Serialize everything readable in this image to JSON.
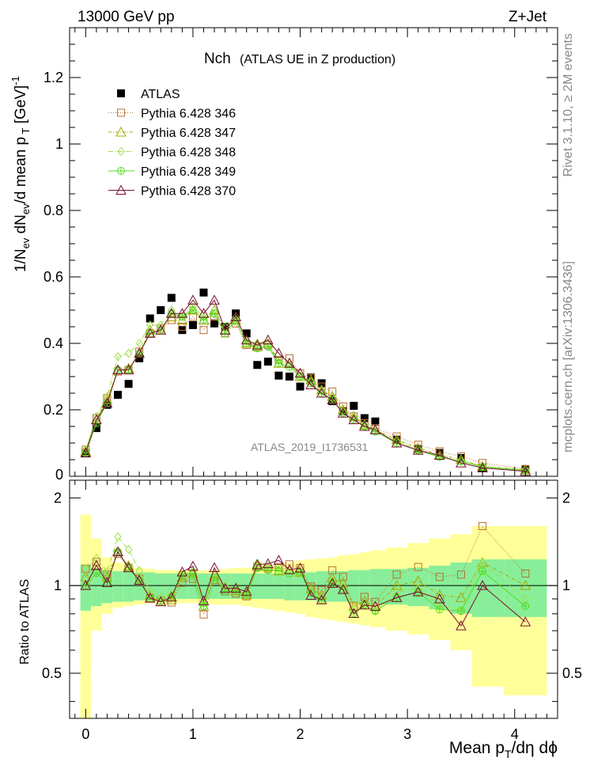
{
  "header": {
    "left": "13000 GeV pp",
    "right": "Z+Jet"
  },
  "side_texts": {
    "rivet": "Rivet 3.1.10, ≥ 2M events",
    "mcplots": "mcplots.cern.ch [arXiv:1306.3436]"
  },
  "chart_data": {
    "type": "scatter",
    "title": "Nch",
    "subtitle": "(ATLAS UE in Z production)",
    "analysis_id": "ATLAS_2019_I1736531",
    "xlabel": "Mean p_T/dη dφ",
    "ylabel": "1/N_ev dN_ev/d mean p_T [GeV]^-1",
    "ratio_ylabel": "Ratio to ATLAS",
    "xlim": [
      -0.15,
      4.4
    ],
    "ylim": [
      0,
      1.35
    ],
    "ratio_ylim": [
      0.35,
      2.3
    ],
    "x_ticks": [
      "0",
      "1",
      "2",
      "3",
      "4"
    ],
    "y_ticks": [
      "0.2",
      "0.4",
      "0.6",
      "0.8",
      "1",
      "1.2"
    ],
    "y_bottom_partial_label": "0",
    "ratio_ticks": [
      "0.5",
      "1",
      "2"
    ],
    "legend_position": "top-left",
    "x": [
      0.0,
      0.1,
      0.2,
      0.3,
      0.4,
      0.5,
      0.6,
      0.7,
      0.8,
      0.9,
      1.0,
      1.1,
      1.2,
      1.3,
      1.4,
      1.5,
      1.6,
      1.7,
      1.8,
      1.9,
      2.0,
      2.1,
      2.2,
      2.3,
      2.4,
      2.5,
      2.6,
      2.7,
      2.9,
      3.1,
      3.3,
      3.5,
      3.7,
      4.1
    ],
    "series": [
      {
        "name": "ATLAS",
        "color": "#000000",
        "marker": "filled-square",
        "values": [
          0.07,
          0.145,
          0.215,
          0.245,
          0.278,
          0.355,
          0.475,
          0.5,
          0.537,
          0.44,
          0.455,
          0.553,
          0.46,
          0.45,
          0.49,
          0.43,
          0.335,
          0.345,
          0.303,
          0.3,
          0.27,
          0.297,
          0.28,
          0.226,
          0.196,
          0.212,
          0.175,
          0.165,
          0.11,
          0.082,
          0.07,
          0.055,
          0.025,
          0.02
        ]
      },
      {
        "name": "Pythia 6.428 346",
        "color": "#b8712f",
        "marker": "open-square",
        "dash": "1,2",
        "values": [
          0.08,
          0.175,
          0.235,
          0.315,
          0.32,
          0.375,
          0.43,
          0.445,
          0.47,
          0.45,
          0.48,
          0.44,
          0.48,
          0.43,
          0.46,
          0.395,
          0.39,
          0.395,
          0.35,
          0.355,
          0.31,
          0.295,
          0.27,
          0.255,
          0.21,
          0.18,
          0.16,
          0.145,
          0.12,
          0.095,
          0.075,
          0.06,
          0.04,
          0.022
        ]
      },
      {
        "name": "Pythia 6.428 347",
        "color": "#a8a800",
        "marker": "open-triangle",
        "dash": "4,2,1,2",
        "values": [
          0.075,
          0.17,
          0.23,
          0.32,
          0.325,
          0.37,
          0.44,
          0.44,
          0.48,
          0.47,
          0.5,
          0.47,
          0.5,
          0.44,
          0.47,
          0.4,
          0.39,
          0.4,
          0.34,
          0.34,
          0.3,
          0.29,
          0.26,
          0.24,
          0.2,
          0.18,
          0.155,
          0.14,
          0.11,
          0.085,
          0.065,
          0.05,
          0.03,
          0.02
        ]
      },
      {
        "name": "Pythia 6.428 348",
        "color": "#9be04a",
        "marker": "open-diamond",
        "dash": "6,2,1,2",
        "values": [
          0.08,
          0.18,
          0.24,
          0.36,
          0.37,
          0.4,
          0.455,
          0.455,
          0.5,
          0.48,
          0.51,
          0.48,
          0.5,
          0.45,
          0.48,
          0.41,
          0.4,
          0.4,
          0.35,
          0.34,
          0.3,
          0.285,
          0.255,
          0.235,
          0.195,
          0.175,
          0.15,
          0.135,
          0.105,
          0.08,
          0.06,
          0.045,
          0.03,
          0.018
        ]
      },
      {
        "name": "Pythia 6.428 349",
        "color": "#55dd22",
        "marker": "open-cross-circle",
        "dash": "",
        "values": [
          0.07,
          0.16,
          0.22,
          0.32,
          0.32,
          0.37,
          0.43,
          0.44,
          0.49,
          0.48,
          0.5,
          0.47,
          0.49,
          0.43,
          0.47,
          0.4,
          0.385,
          0.39,
          0.34,
          0.33,
          0.3,
          0.28,
          0.25,
          0.23,
          0.19,
          0.17,
          0.15,
          0.135,
          0.1,
          0.078,
          0.058,
          0.045,
          0.028,
          0.017
        ]
      },
      {
        "name": "Pythia 6.428 370",
        "color": "#7a1030",
        "marker": "open-triangle",
        "dash": "",
        "values": [
          0.07,
          0.17,
          0.22,
          0.32,
          0.32,
          0.37,
          0.43,
          0.44,
          0.49,
          0.49,
          0.53,
          0.49,
          0.53,
          0.44,
          0.48,
          0.41,
          0.395,
          0.41,
          0.37,
          0.34,
          0.31,
          0.275,
          0.25,
          0.23,
          0.19,
          0.17,
          0.15,
          0.14,
          0.1,
          0.078,
          0.063,
          0.04,
          0.025,
          0.015
        ]
      }
    ],
    "ratio_bands": {
      "inner_color": "#88ee99",
      "outer_color": "#ffff99",
      "inner_lo": [
        0.82,
        0.85,
        0.87,
        0.88,
        0.88,
        0.89,
        0.89,
        0.9,
        0.9,
        0.9,
        0.9,
        0.9,
        0.9,
        0.9,
        0.9,
        0.9,
        0.9,
        0.9,
        0.9,
        0.89,
        0.89,
        0.89,
        0.88,
        0.88,
        0.88,
        0.87,
        0.87,
        0.86,
        0.86,
        0.85,
        0.83,
        0.8,
        0.78,
        0.78
      ],
      "inner_hi": [
        1.18,
        1.15,
        1.13,
        1.12,
        1.12,
        1.11,
        1.11,
        1.1,
        1.1,
        1.1,
        1.1,
        1.1,
        1.1,
        1.1,
        1.1,
        1.1,
        1.1,
        1.1,
        1.1,
        1.11,
        1.11,
        1.11,
        1.12,
        1.12,
        1.12,
        1.13,
        1.13,
        1.14,
        1.14,
        1.15,
        1.17,
        1.2,
        1.23,
        1.23
      ],
      "outer_lo": [
        0.35,
        0.7,
        0.8,
        0.84,
        0.85,
        0.86,
        0.87,
        0.87,
        0.87,
        0.87,
        0.87,
        0.87,
        0.86,
        0.86,
        0.86,
        0.85,
        0.84,
        0.83,
        0.82,
        0.81,
        0.8,
        0.78,
        0.77,
        0.76,
        0.75,
        0.74,
        0.73,
        0.72,
        0.7,
        0.68,
        0.65,
        0.6,
        0.45,
        0.42
      ],
      "outer_hi": [
        1.75,
        1.45,
        1.25,
        1.2,
        1.17,
        1.15,
        1.14,
        1.13,
        1.13,
        1.13,
        1.13,
        1.13,
        1.13,
        1.14,
        1.15,
        1.15,
        1.16,
        1.17,
        1.18,
        1.2,
        1.22,
        1.23,
        1.24,
        1.25,
        1.27,
        1.28,
        1.3,
        1.32,
        1.35,
        1.4,
        1.45,
        1.5,
        1.6,
        1.6
      ]
    }
  }
}
